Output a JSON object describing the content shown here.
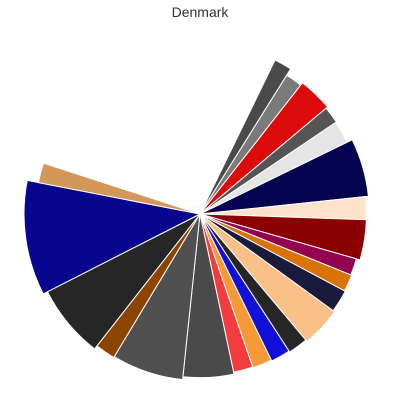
{
  "chart_data": {
    "type": "pie",
    "subtype": "polar-area",
    "title": "Denmark",
    "start_angle_deg": 64,
    "direction": "clockwise",
    "slices": [
      {
        "angle": 6,
        "value": 180,
        "color": "#4a4a4a"
      },
      {
        "angle": 6,
        "value": 172,
        "color": "#7a7a7a"
      },
      {
        "angle": 12,
        "value": 175,
        "color": "#dc0a0a"
      },
      {
        "angle": 6,
        "value": 173,
        "color": "#555555"
      },
      {
        "angle": 8,
        "value": 172,
        "color": "#e5e5e5"
      },
      {
        "angle": 20,
        "value": 178,
        "color": "#03034f"
      },
      {
        "angle": 8,
        "value": 175,
        "color": "#ffe2cc"
      },
      {
        "angle": 14,
        "value": 175,
        "color": "#8b0000"
      },
      {
        "angle": 6,
        "value": 171,
        "color": "#930050"
      },
      {
        "angle": 6,
        "value": 172,
        "color": "#d97306"
      },
      {
        "angle": 8,
        "value": 173,
        "color": "#1a1a3d"
      },
      {
        "angle": 14,
        "value": 175,
        "color": "#fbc088"
      },
      {
        "angle": 7,
        "value": 173,
        "color": "#262626"
      },
      {
        "angle": 7,
        "value": 172,
        "color": "#1010d8"
      },
      {
        "angle": 7,
        "value": 171,
        "color": "#f59a36"
      },
      {
        "angle": 7,
        "value": 170,
        "color": "#f53c3c"
      },
      {
        "angle": 18,
        "value": 172,
        "color": "#4a4a4a"
      },
      {
        "angle": 25,
        "value": 175,
        "color": "#505050"
      },
      {
        "angle": 7,
        "value": 176,
        "color": "#8b4500"
      },
      {
        "angle": 25,
        "value": 180,
        "color": "#262626"
      },
      {
        "angle": 38,
        "value": 185,
        "color": "#08088f"
      },
      {
        "angle": 7,
        "value": 173,
        "color": "#d4975a"
      }
    ]
  }
}
